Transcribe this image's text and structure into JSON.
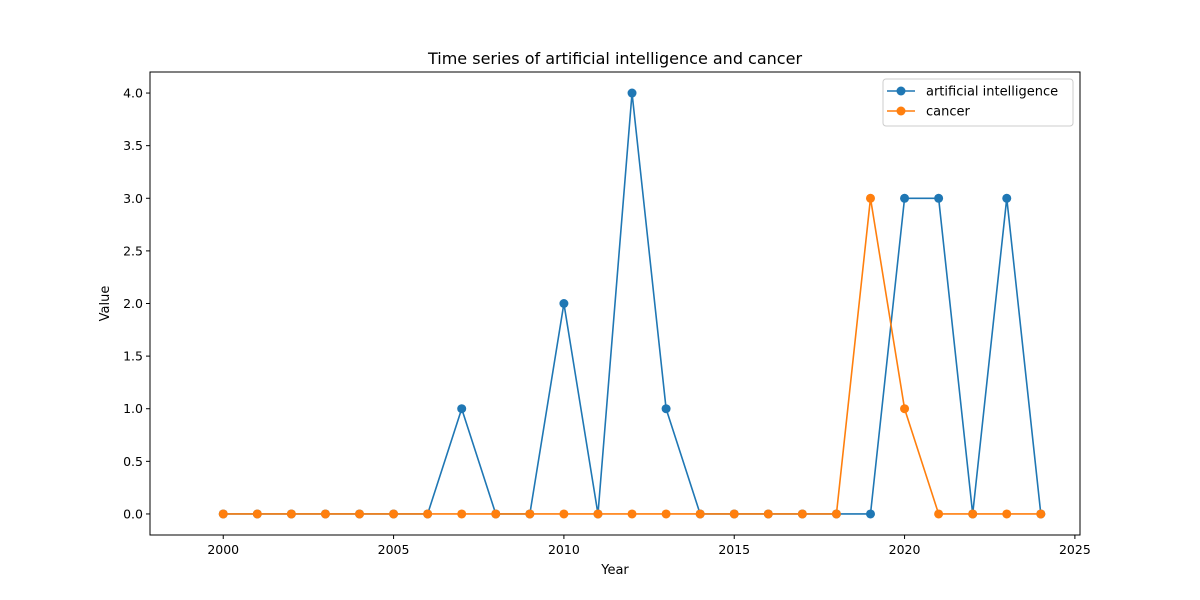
{
  "chart_data": {
    "type": "line",
    "title": "Time series of artificial intelligence and cancer",
    "xlabel": "Year",
    "ylabel": "Value",
    "xlim": [
      1997.85,
      2025.15
    ],
    "ylim": [
      -0.2,
      4.2
    ],
    "xticks": [
      2000,
      2005,
      2010,
      2015,
      2020,
      2025
    ],
    "yticks": [
      0.0,
      0.5,
      1.0,
      1.5,
      2.0,
      2.5,
      3.0,
      3.5,
      4.0
    ],
    "grid": false,
    "legend_position": "top-right",
    "x": [
      2000,
      2001,
      2002,
      2003,
      2004,
      2005,
      2006,
      2007,
      2008,
      2009,
      2010,
      2011,
      2012,
      2013,
      2014,
      2015,
      2016,
      2017,
      2018,
      2019,
      2020,
      2021,
      2022,
      2023,
      2024
    ],
    "series": [
      {
        "name": "artificial intelligence",
        "color": "#1f77b4",
        "values": [
          0,
          0,
          0,
          0,
          0,
          0,
          0,
          1,
          0,
          0,
          2,
          0,
          4,
          1,
          0,
          0,
          0,
          0,
          0,
          0,
          3,
          3,
          0,
          3,
          0
        ]
      },
      {
        "name": "cancer",
        "color": "#ff7f0e",
        "values": [
          0,
          0,
          0,
          0,
          0,
          0,
          0,
          0,
          0,
          0,
          0,
          0,
          0,
          0,
          0,
          0,
          0,
          0,
          0,
          3,
          1,
          0,
          0,
          0,
          0
        ]
      }
    ]
  }
}
